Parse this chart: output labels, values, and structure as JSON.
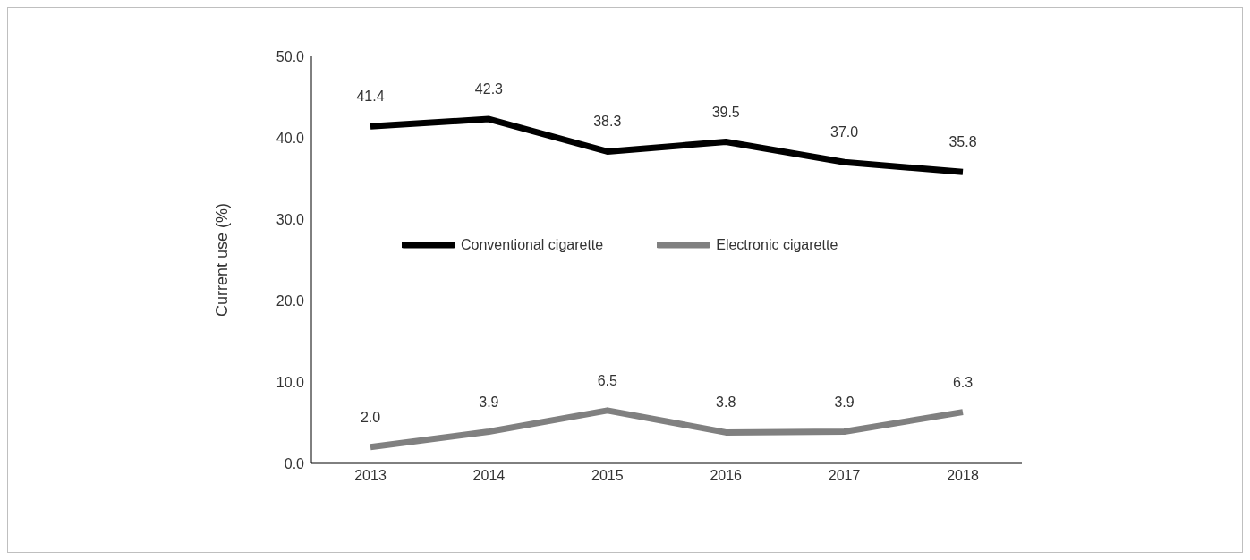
{
  "chart_data": {
    "type": "line",
    "ylabel": "Current use (%)",
    "categories": [
      "2013",
      "2014",
      "2015",
      "2016",
      "2017",
      "2018"
    ],
    "series": [
      {
        "name": "Conventional cigarette",
        "color": "#000000",
        "values": [
          41.4,
          42.3,
          38.3,
          39.5,
          37.0,
          35.8
        ],
        "value_labels": [
          "41.4",
          "42.3",
          "38.3",
          "39.5",
          "37.0",
          "35.8"
        ]
      },
      {
        "name": "Electronic cigarette",
        "color": "#808080",
        "values": [
          2.0,
          3.9,
          6.5,
          3.8,
          3.9,
          6.3
        ],
        "value_labels": [
          "2.0",
          "3.9",
          "6.5",
          "3.8",
          "3.9",
          "6.3"
        ]
      }
    ],
    "ylim": [
      0,
      50
    ],
    "yticks": [
      {
        "value": 0,
        "label": "0.0"
      },
      {
        "value": 10,
        "label": "10.0"
      },
      {
        "value": 20,
        "label": "20.0"
      },
      {
        "value": 30,
        "label": "30.0"
      },
      {
        "value": 40,
        "label": "40.0"
      },
      {
        "value": 50,
        "label": "50.0"
      }
    ],
    "grid": false,
    "legend": "center",
    "marker": "none",
    "line_style": "solid"
  }
}
